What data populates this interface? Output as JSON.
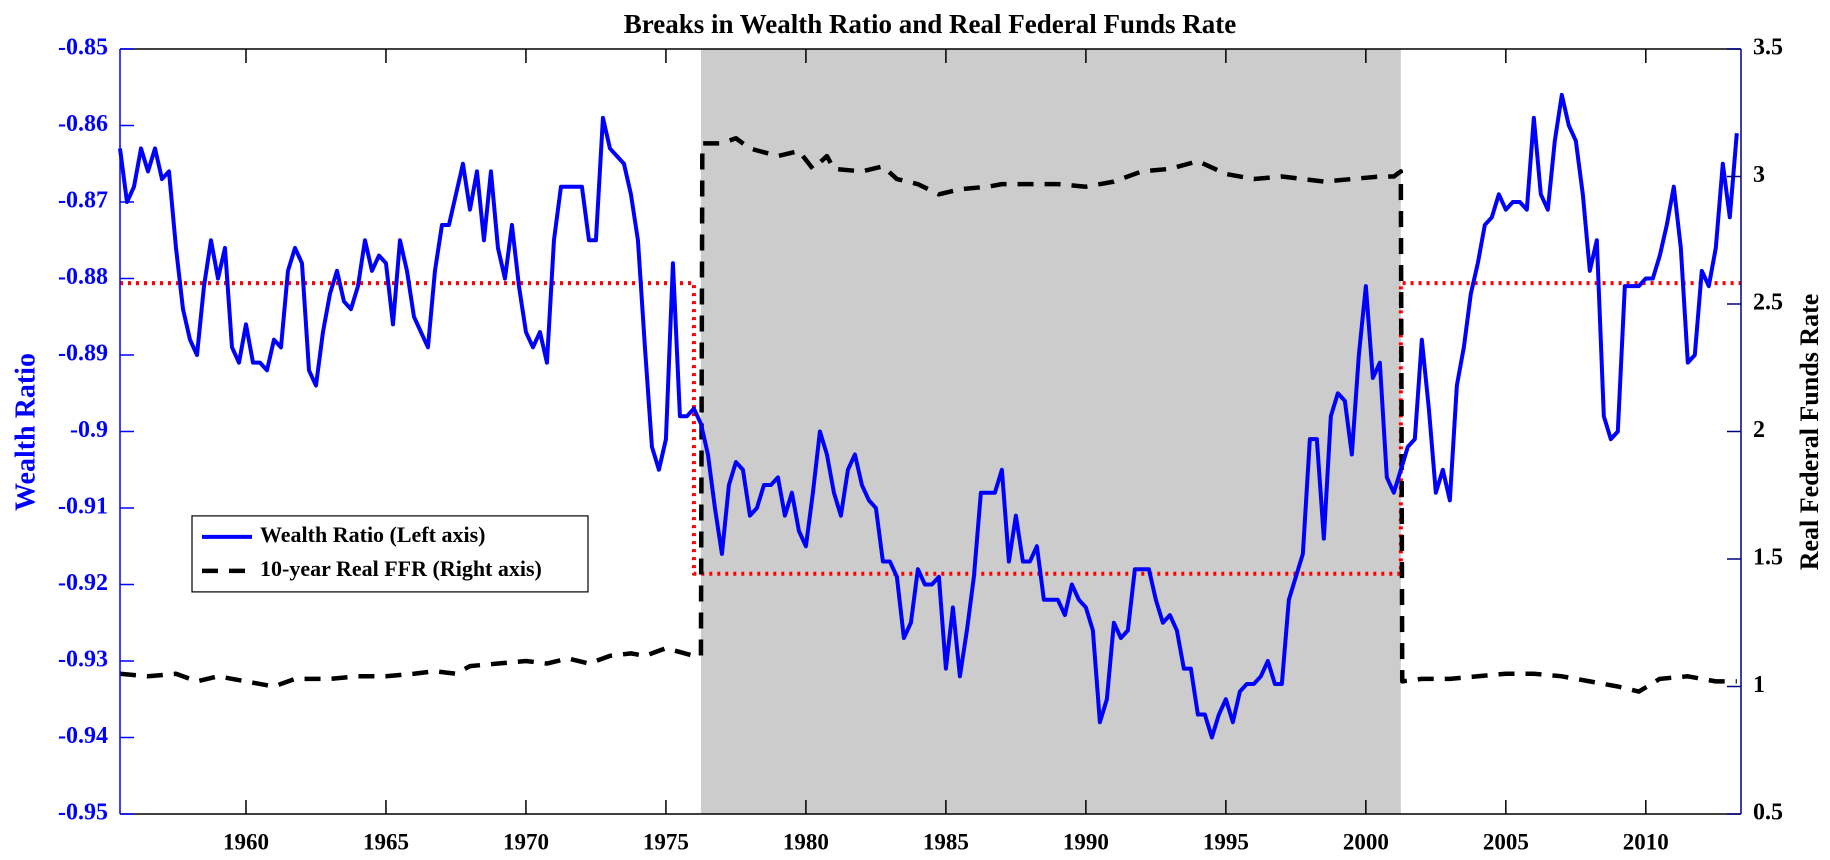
{
  "chart_data": {
    "type": "line",
    "title": "Breaks in Wealth Ratio and Real Federal Funds Rate",
    "ylabel": "Wealth Ratio",
    "y2label": "Real Federal Funds Rate",
    "xlim": [
      1955.5,
      2013.4
    ],
    "xticks": [
      1960,
      1965,
      1970,
      1975,
      1980,
      1985,
      1990,
      1995,
      2000,
      2005,
      2010
    ],
    "ylim": [
      -0.95,
      -0.85
    ],
    "yticks": [
      -0.95,
      -0.94,
      -0.93,
      -0.92,
      -0.91,
      -0.9,
      -0.89,
      -0.88,
      -0.87,
      -0.86,
      -0.85
    ],
    "y2lim": [
      0.5,
      3.5
    ],
    "y2ticks": [
      0.5,
      1,
      1.5,
      2,
      2.5,
      3,
      3.5
    ],
    "y_color": "#0000ff",
    "y2_color": "#000080",
    "grid": false,
    "legend_location": "west",
    "shaded_regions": [
      [
        1976.25,
        2001.25
      ]
    ],
    "shade_color": "#cccccc",
    "series": [
      {
        "name": "Wealth Ratio (Left axis)",
        "color": "#0000ff",
        "linestyle": "solid",
        "axis": "y",
        "x": [
          1955.5,
          1955.75,
          1956,
          1956.25,
          1956.5,
          1956.75,
          1957,
          1957.25,
          1957.5,
          1957.75,
          1958,
          1958.25,
          1958.5,
          1958.75,
          1959,
          1959.25,
          1959.5,
          1959.75,
          1960,
          1960.25,
          1960.5,
          1960.75,
          1961,
          1961.25,
          1961.5,
          1961.75,
          1962,
          1962.25,
          1962.5,
          1962.75,
          1963,
          1963.25,
          1963.5,
          1963.75,
          1964,
          1964.25,
          1964.5,
          1964.75,
          1965,
          1965.25,
          1965.5,
          1965.75,
          1966,
          1966.25,
          1966.5,
          1966.75,
          1967,
          1967.25,
          1967.5,
          1967.75,
          1968,
          1968.25,
          1968.5,
          1968.75,
          1969,
          1969.25,
          1969.5,
          1969.75,
          1970,
          1970.25,
          1970.5,
          1970.75,
          1971,
          1971.25,
          1971.5,
          1971.75,
          1972,
          1972.25,
          1972.5,
          1972.75,
          1973,
          1973.25,
          1973.5,
          1973.75,
          1974,
          1974.25,
          1974.5,
          1974.75,
          1975,
          1975.25,
          1975.5,
          1975.75,
          1976,
          1976.25,
          1976.5,
          1976.75,
          1977,
          1977.25,
          1977.5,
          1977.75,
          1978,
          1978.25,
          1978.5,
          1978.75,
          1979,
          1979.25,
          1979.5,
          1979.75,
          1980,
          1980.25,
          1980.5,
          1980.75,
          1981,
          1981.25,
          1981.5,
          1981.75,
          1982,
          1982.25,
          1982.5,
          1982.75,
          1983,
          1983.25,
          1983.5,
          1983.75,
          1984,
          1984.25,
          1984.5,
          1984.75,
          1985,
          1985.25,
          1985.5,
          1985.75,
          1986,
          1986.25,
          1986.5,
          1986.75,
          1987,
          1987.25,
          1987.5,
          1987.75,
          1988,
          1988.25,
          1988.5,
          1988.75,
          1989,
          1989.25,
          1989.5,
          1989.75,
          1990,
          1990.25,
          1990.5,
          1990.75,
          1991,
          1991.25,
          1991.5,
          1991.75,
          1992,
          1992.25,
          1992.5,
          1992.75,
          1993,
          1993.25,
          1993.5,
          1993.75,
          1994,
          1994.25,
          1994.5,
          1994.75,
          1995,
          1995.25,
          1995.5,
          1995.75,
          1996,
          1996.25,
          1996.5,
          1996.75,
          1997,
          1997.25,
          1997.5,
          1997.75,
          1998,
          1998.25,
          1998.5,
          1998.75,
          1999,
          1999.25,
          1999.5,
          1999.75,
          2000,
          2000.25,
          2000.5,
          2000.75,
          2001,
          2001.25,
          2001.5,
          2001.75,
          2002,
          2002.25,
          2002.5,
          2002.75,
          2003,
          2003.25,
          2003.5,
          2003.75,
          2004,
          2004.25,
          2004.5,
          2004.75,
          2005,
          2005.25,
          2005.5,
          2005.75,
          2006,
          2006.25,
          2006.5,
          2006.75,
          2007,
          2007.25,
          2007.5,
          2007.75,
          2008,
          2008.25,
          2008.5,
          2008.75,
          2009,
          2009.25,
          2009.5,
          2009.75,
          2010,
          2010.25,
          2010.5,
          2010.75,
          2011,
          2011.25,
          2011.5,
          2011.75,
          2012,
          2012.25,
          2012.5,
          2012.75,
          2013,
          2013.25
        ],
        "values": [
          -0.863,
          -0.87,
          -0.868,
          -0.863,
          -0.866,
          -0.863,
          -0.867,
          -0.866,
          -0.876,
          -0.884,
          -0.888,
          -0.89,
          -0.881,
          -0.875,
          -0.88,
          -0.876,
          -0.889,
          -0.891,
          -0.886,
          -0.891,
          -0.891,
          -0.892,
          -0.888,
          -0.889,
          -0.879,
          -0.876,
          -0.878,
          -0.892,
          -0.894,
          -0.887,
          -0.882,
          -0.879,
          -0.883,
          -0.884,
          -0.881,
          -0.875,
          -0.879,
          -0.877,
          -0.878,
          -0.886,
          -0.875,
          -0.879,
          -0.885,
          -0.887,
          -0.889,
          -0.879,
          -0.873,
          -0.873,
          -0.869,
          -0.865,
          -0.871,
          -0.866,
          -0.875,
          -0.866,
          -0.876,
          -0.88,
          -0.873,
          -0.881,
          -0.887,
          -0.889,
          -0.887,
          -0.891,
          -0.875,
          -0.868,
          -0.868,
          -0.868,
          -0.868,
          -0.875,
          -0.875,
          -0.859,
          -0.863,
          -0.864,
          -0.865,
          -0.869,
          -0.875,
          -0.889,
          -0.902,
          -0.905,
          -0.901,
          -0.878,
          -0.898,
          -0.898,
          -0.897,
          -0.899,
          -0.903,
          -0.91,
          -0.916,
          -0.907,
          -0.904,
          -0.905,
          -0.911,
          -0.91,
          -0.907,
          -0.907,
          -0.906,
          -0.911,
          -0.908,
          -0.913,
          -0.915,
          -0.908,
          -0.9,
          -0.903,
          -0.908,
          -0.911,
          -0.905,
          -0.903,
          -0.907,
          -0.909,
          -0.91,
          -0.917,
          -0.917,
          -0.919,
          -0.927,
          -0.925,
          -0.918,
          -0.92,
          -0.92,
          -0.919,
          -0.931,
          -0.923,
          -0.932,
          -0.926,
          -0.919,
          -0.908,
          -0.908,
          -0.908,
          -0.905,
          -0.917,
          -0.911,
          -0.917,
          -0.917,
          -0.915,
          -0.922,
          -0.922,
          -0.922,
          -0.924,
          -0.92,
          -0.922,
          -0.923,
          -0.926,
          -0.938,
          -0.935,
          -0.925,
          -0.927,
          -0.926,
          -0.918,
          -0.918,
          -0.918,
          -0.922,
          -0.925,
          -0.924,
          -0.926,
          -0.931,
          -0.931,
          -0.937,
          -0.937,
          -0.94,
          -0.937,
          -0.935,
          -0.938,
          -0.934,
          -0.933,
          -0.933,
          -0.932,
          -0.93,
          -0.933,
          -0.933,
          -0.922,
          -0.919,
          -0.916,
          -0.901,
          -0.901,
          -0.914,
          -0.898,
          -0.895,
          -0.896,
          -0.903,
          -0.89,
          -0.881,
          -0.893,
          -0.891,
          -0.906,
          -0.908,
          -0.905,
          -0.902,
          -0.901,
          -0.888,
          -0.897,
          -0.908,
          -0.905,
          -0.909,
          -0.894,
          -0.889,
          -0.882,
          -0.878,
          -0.873,
          -0.872,
          -0.869,
          -0.871,
          -0.87,
          -0.87,
          -0.871,
          -0.859,
          -0.869,
          -0.871,
          -0.862,
          -0.856,
          -0.86,
          -0.862,
          -0.869,
          -0.879,
          -0.875,
          -0.898,
          -0.901,
          -0.9,
          -0.881,
          -0.881,
          -0.881,
          -0.88,
          -0.88,
          -0.877,
          -0.873,
          -0.868,
          -0.876,
          -0.891,
          -0.89,
          -0.879,
          -0.881,
          -0.876,
          -0.865,
          -0.872,
          -0.861
        ]
      },
      {
        "name": "10-year Real FFR (Right axis)",
        "color": "#000000",
        "linestyle": "dashed",
        "axis": "y2",
        "x": [
          1955.5,
          1956.5,
          1957.5,
          1958.25,
          1959,
          1960,
          1961,
          1961.75,
          1963,
          1964,
          1965,
          1966,
          1966.75,
          1967.5,
          1968,
          1969,
          1970,
          1970.75,
          1971.5,
          1972.25,
          1973,
          1973.75,
          1974.25,
          1975,
          1976,
          1976.25,
          1976.3,
          1977,
          1977.5,
          1978,
          1979,
          1979.75,
          1980.25,
          1980.75,
          1981,
          1982,
          1982.75,
          1983.25,
          1984,
          1984.75,
          1985.5,
          1986.5,
          1987,
          1988,
          1989,
          1990,
          1991,
          1992,
          1993,
          1994,
          1995,
          1996,
          1997,
          1998.5,
          1999.5,
          2000.5,
          2001,
          2001.25,
          2001.3,
          2002,
          2003,
          2004,
          2005,
          2006,
          2007,
          2008,
          2009,
          2009.75,
          2010.5,
          2011.5,
          2012.5,
          2013.25
        ],
        "values": [
          1.05,
          1.04,
          1.05,
          1.02,
          1.04,
          1.02,
          1.0,
          1.03,
          1.03,
          1.04,
          1.04,
          1.05,
          1.06,
          1.05,
          1.08,
          1.09,
          1.1,
          1.09,
          1.11,
          1.09,
          1.12,
          1.13,
          1.12,
          1.15,
          1.12,
          1.12,
          3.13,
          3.13,
          3.15,
          3.11,
          3.08,
          3.1,
          3.03,
          3.08,
          3.03,
          3.02,
          3.04,
          2.99,
          2.97,
          2.93,
          2.95,
          2.96,
          2.97,
          2.97,
          2.97,
          2.96,
          2.98,
          3.02,
          3.03,
          3.06,
          3.01,
          2.99,
          3.0,
          2.98,
          2.99,
          3.0,
          3.0,
          3.02,
          1.02,
          1.03,
          1.03,
          1.04,
          1.05,
          1.05,
          1.04,
          1.02,
          1.0,
          0.98,
          1.03,
          1.04,
          1.02,
          1.02
        ]
      },
      {
        "color": "#ff0000",
        "linestyle": "dotted",
        "axis": "y",
        "x": [
          1955.5,
          1976.0,
          1976.0,
          2001.25,
          2001.25,
          2013.4
        ],
        "values": [
          -0.8806,
          -0.8806,
          -0.9186,
          -0.9186,
          -0.8806,
          -0.8806
        ]
      }
    ]
  }
}
